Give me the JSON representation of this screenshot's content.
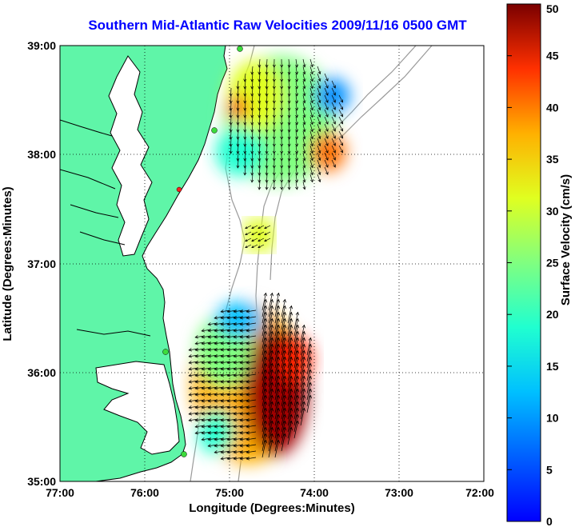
{
  "title": "Southern Mid-Atlantic Raw Velocities 2009/11/16 0500 GMT",
  "map": {
    "x_label": "Longitude (Degrees:Minutes)",
    "y_label": "Latitude (Degrees:Minutes)",
    "lon_ticks": [
      "77:00",
      "76:00",
      "75:00",
      "74:00",
      "73:00",
      "72:00"
    ],
    "lat_ticks": [
      "39:00",
      "38:00",
      "37:00",
      "36:00",
      "35:00"
    ],
    "lon_range": [
      -77,
      -72
    ],
    "lat_range": [
      35,
      39
    ],
    "grid": true,
    "land_color": "#5ff5a8",
    "coast_color": "#000000",
    "bathymetry_color": "#9a9a9a",
    "vector_color": "#000000",
    "station_colors": [
      "#3cdc3c",
      "#ff2020"
    ]
  },
  "colorbar": {
    "label": "Surface Velocity (cm/s)",
    "ticks": [
      "0",
      "5",
      "10",
      "15",
      "20",
      "25",
      "30",
      "35",
      "40",
      "45",
      "50"
    ],
    "min": 0,
    "max": 50,
    "colormap": "jet"
  }
}
